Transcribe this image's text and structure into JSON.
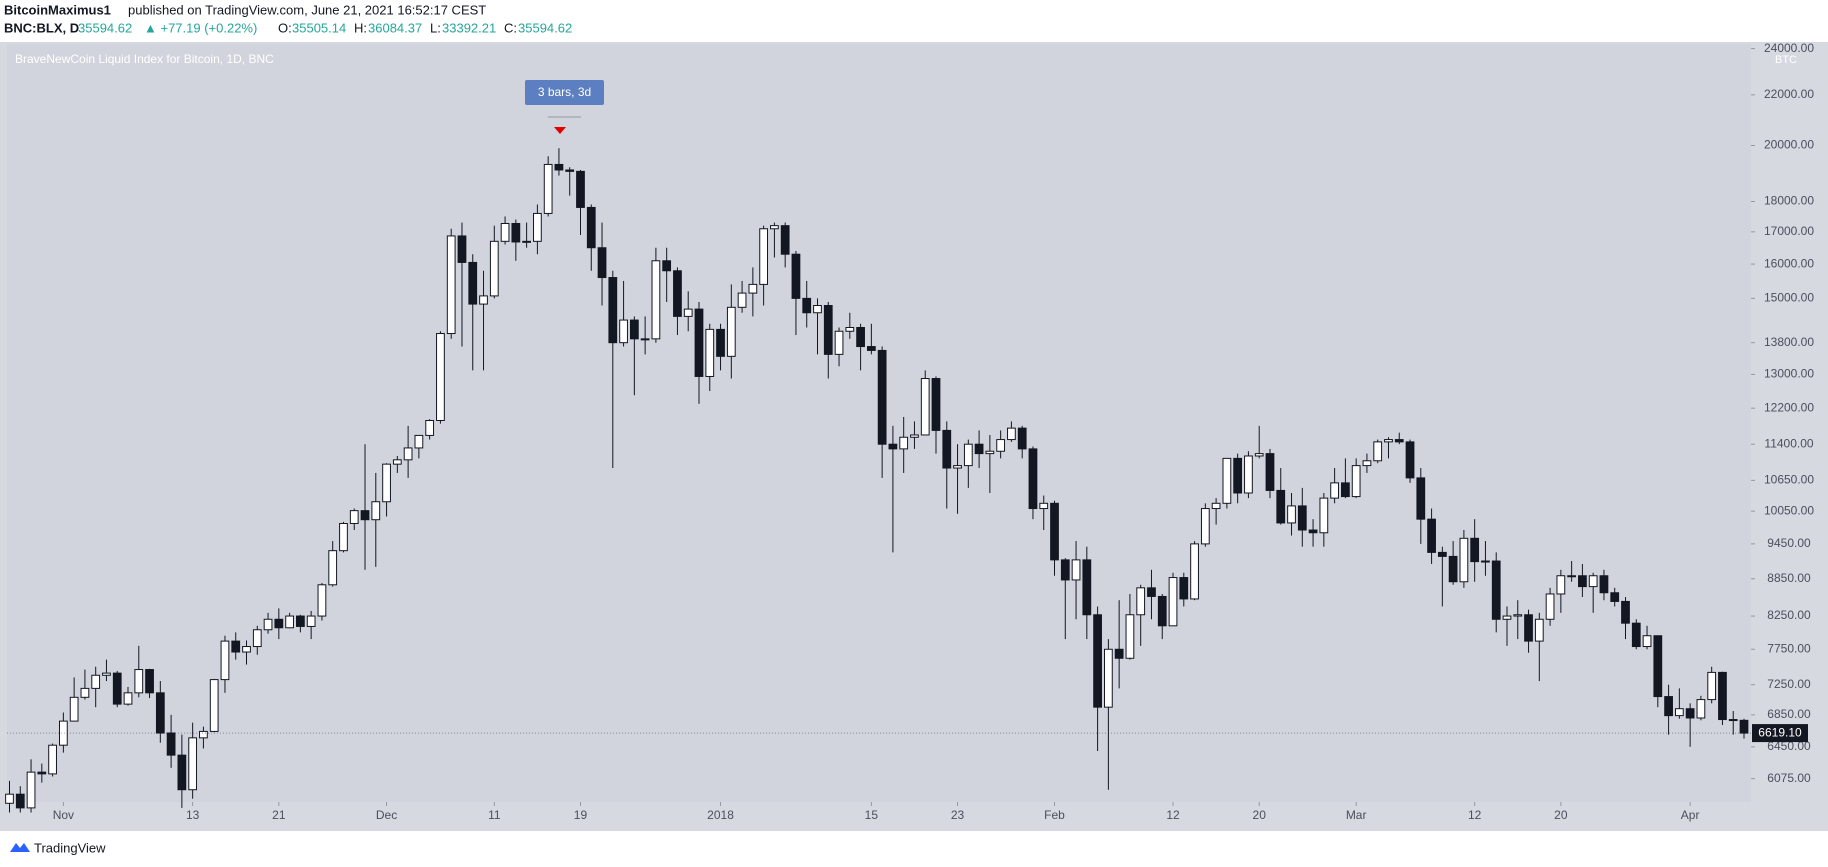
{
  "header": {
    "publisher": "BitcoinMaximus1",
    "published": "published on TradingView.com, June 21, 2021 16:52:17 CEST",
    "symbol": "BNC:BLX, D",
    "price": "35594.62",
    "change": "▲ +77.19 (+0.22%)",
    "o_label": "O:",
    "o": "35505.14",
    "h_label": "H:",
    "h": "36084.37",
    "l_label": "L:",
    "l": "33392.21",
    "c_label": "C:",
    "c": "35594.62"
  },
  "footer": {
    "brand": "TradingView"
  },
  "chart_data": {
    "type": "candlestick",
    "title": "BraveNewCoin Liquid Index for Bitcoin, 1D, BNC",
    "y_unit": "BTC",
    "annotation": "3 bars, 3d",
    "log_scale": true,
    "grid": false,
    "up_color": "#ffffff",
    "down_color": "#131722",
    "background": "#d1d4dc",
    "last_price": {
      "value": 6619.1,
      "label": "6619.10"
    },
    "categories": [
      null,
      null,
      null,
      null,
      null,
      "Nov",
      null,
      null,
      null,
      null,
      null,
      null,
      null,
      null,
      null,
      null,
      null,
      "13",
      null,
      null,
      null,
      null,
      null,
      null,
      null,
      "21",
      null,
      null,
      null,
      null,
      null,
      null,
      null,
      null,
      null,
      "Dec",
      null,
      null,
      null,
      null,
      null,
      null,
      null,
      null,
      null,
      "11",
      null,
      null,
      null,
      null,
      null,
      null,
      null,
      "19",
      null,
      null,
      null,
      null,
      null,
      null,
      null,
      null,
      null,
      null,
      null,
      null,
      "2018",
      null,
      null,
      null,
      null,
      null,
      null,
      null,
      null,
      null,
      null,
      null,
      null,
      null,
      "15",
      null,
      null,
      null,
      null,
      null,
      null,
      null,
      "23",
      null,
      null,
      null,
      null,
      null,
      null,
      null,
      null,
      "Feb",
      null,
      null,
      null,
      null,
      null,
      null,
      null,
      null,
      null,
      null,
      "12",
      null,
      null,
      null,
      null,
      null,
      null,
      null,
      "20",
      null,
      null,
      null,
      null,
      null,
      null,
      null,
      null,
      "Mar",
      null,
      null,
      null,
      null,
      null,
      null,
      null,
      null,
      null,
      null,
      "12",
      null,
      null,
      null,
      null,
      null,
      null,
      null,
      "20",
      null,
      null,
      null,
      null,
      null,
      null,
      null,
      null,
      null,
      null,
      null,
      "Apr",
      null,
      null,
      null,
      null,
      null
    ],
    "open": [
      5800,
      5900,
      5750,
      6150,
      6130,
      6470,
      6770,
      7080,
      7200,
      7380,
      7410,
      6990,
      7140,
      7460,
      7140,
      6620,
      6350,
      5950,
      6560,
      6640,
      7320,
      7870,
      7710,
      7790,
      8040,
      8200,
      8070,
      8250,
      8090,
      8250,
      8750,
      9330,
      9820,
      10060,
      9890,
      10230,
      10980,
      11070,
      11320,
      11590,
      11920,
      14040,
      16870,
      16050,
      14840,
      15070,
      16700,
      17270,
      16680,
      16700,
      17600,
      19300,
      19100,
      19050,
      17800,
      16500,
      15600,
      13800,
      14400,
      13900,
      13900,
      16100,
      15800,
      14500,
      14700,
      12950,
      14150,
      13450,
      14750,
      15150,
      15400,
      17100,
      17200,
      16300,
      15000,
      14600,
      14800,
      13500,
      14100,
      14200,
      13700,
      13600,
      11400,
      11300,
      11550,
      11600,
      12900,
      11700,
      10900,
      10950,
      11400,
      11200,
      11250,
      11500,
      11750,
      11300,
      10100,
      10200,
      9170,
      8830,
      9170,
      8270,
      6950,
      7750,
      7620,
      8270,
      8700,
      8560,
      8100,
      8870,
      8520,
      9450,
      10100,
      10200,
      11100,
      10400,
      11150,
      11200,
      10450,
      9830,
      10150,
      9700,
      9650,
      10300,
      10600,
      10330,
      10950,
      11050,
      11450,
      11500,
      11450,
      10700,
      9900,
      9300,
      9230,
      8800,
      9550,
      9140,
      9150,
      8200,
      8250,
      8270,
      7870,
      8200,
      8600,
      8900,
      8900,
      8720,
      8900,
      8620,
      8480,
      8140,
      7790,
      7950,
      7090,
      6840,
      6930,
      6810,
      7050,
      7420,
      6790,
      6780
    ],
    "high": [
      6050,
      5990,
      6300,
      6250,
      6490,
      6880,
      7350,
      7460,
      7500,
      7600,
      7440,
      7220,
      7800,
      7470,
      7300,
      6850,
      6600,
      6750,
      6700,
      7330,
      7950,
      8000,
      7880,
      8100,
      8300,
      8370,
      8300,
      8270,
      8330,
      8780,
      9500,
      9850,
      10100,
      11400,
      10800,
      11000,
      11150,
      11800,
      11600,
      11950,
      14100,
      17100,
      17300,
      16300,
      15800,
      17200,
      17500,
      17400,
      17300,
      17900,
      19600,
      19900,
      19200,
      19100,
      17900,
      17300,
      15800,
      15500,
      14500,
      14500,
      16500,
      16500,
      15900,
      15200,
      14900,
      14300,
      14300,
      15400,
      15500,
      15900,
      17200,
      17300,
      17300,
      16400,
      15500,
      15000,
      14900,
      14200,
      14600,
      14300,
      14300,
      13700,
      11800,
      12000,
      11900,
      13100,
      12950,
      11900,
      11400,
      11500,
      11700,
      11600,
      11700,
      11900,
      11800,
      11350,
      10350,
      10250,
      9200,
      9500,
      9400,
      8400,
      7900,
      8500,
      8600,
      8750,
      9000,
      8600,
      8950,
      8950,
      9500,
      10200,
      10300,
      11100,
      11200,
      11250,
      11800,
      11300,
      10900,
      10400,
      10500,
      9900,
      10400,
      10900,
      11100,
      11100,
      11200,
      11500,
      11550,
      11650,
      11500,
      10900,
      10100,
      9400,
      9500,
      9700,
      9900,
      9500,
      9300,
      8400,
      8500,
      8350,
      8300,
      8700,
      9000,
      9150,
      9100,
      8950,
      9000,
      8700,
      8550,
      8200,
      8100,
      7950,
      7250,
      7200,
      7000,
      7100,
      7500,
      7430,
      6900,
      6800
    ],
    "low": [
      5700,
      5700,
      5700,
      6030,
      6100,
      6380,
      6770,
      7050,
      6950,
      7300,
      6950,
      6970,
      7080,
      7070,
      6500,
      6200,
      5750,
      5850,
      6430,
      6630,
      7140,
      7600,
      7530,
      7670,
      7980,
      7900,
      8060,
      8000,
      7900,
      8180,
      8720,
      9300,
      9700,
      9000,
      9050,
      9950,
      10800,
      10700,
      11100,
      11500,
      11850,
      13900,
      13700,
      13100,
      13100,
      15000,
      16600,
      16100,
      16500,
      16300,
      17500,
      18900,
      18200,
      16900,
      15800,
      14800,
      10900,
      13700,
      12500,
      13500,
      13800,
      14900,
      14000,
      14100,
      12300,
      12600,
      13100,
      12900,
      14600,
      14500,
      14800,
      16200,
      15900,
      14000,
      14200,
      13500,
      12900,
      13200,
      13900,
      13100,
      13500,
      10700,
      9300,
      10800,
      11300,
      11600,
      11200,
      10100,
      10000,
      10500,
      10900,
      10400,
      11100,
      11450,
      11100,
      9900,
      9700,
      8900,
      7900,
      8200,
      7900,
      6400,
      5950,
      7200,
      7600,
      7800,
      8200,
      7900,
      8100,
      8400,
      8500,
      9400,
      9800,
      10100,
      10200,
      10300,
      11100,
      10300,
      9800,
      9600,
      9400,
      9400,
      9400,
      10200,
      10300,
      10300,
      10800,
      11000,
      11100,
      11400,
      10600,
      9450,
      9100,
      8400,
      8750,
      8700,
      8800,
      8900,
      8000,
      7800,
      7900,
      7700,
      7300,
      8100,
      8300,
      8800,
      8550,
      8300,
      8500,
      8400,
      7900,
      7750,
      7750,
      6950,
      6600,
      6800,
      6450,
      6780,
      7000,
      6720,
      6600,
      6550
    ],
    "close": [
      5900,
      5750,
      6150,
      6130,
      6470,
      6770,
      7080,
      7200,
      7380,
      7410,
      6990,
      7140,
      7460,
      7140,
      6620,
      6350,
      5950,
      6560,
      6640,
      7320,
      7870,
      7710,
      7790,
      8040,
      8200,
      8070,
      8250,
      8090,
      8250,
      8750,
      9330,
      9820,
      10060,
      9890,
      10230,
      10980,
      11070,
      11320,
      11590,
      11920,
      14040,
      16870,
      16050,
      14840,
      15070,
      16700,
      17270,
      16680,
      16700,
      17600,
      19300,
      19100,
      19050,
      17800,
      16500,
      15600,
      13800,
      14400,
      13900,
      13900,
      16100,
      15800,
      14500,
      14700,
      12950,
      14150,
      13450,
      14750,
      15150,
      15400,
      17100,
      17200,
      16300,
      15000,
      14600,
      14800,
      13500,
      14100,
      14200,
      13700,
      13600,
      11400,
      11300,
      11550,
      11600,
      12900,
      11700,
      10900,
      10950,
      11400,
      11200,
      11250,
      11500,
      11750,
      11300,
      10100,
      10200,
      9170,
      8830,
      9170,
      8270,
      6950,
      7750,
      7620,
      8270,
      8700,
      8560,
      8100,
      8870,
      8520,
      9450,
      10100,
      10200,
      11100,
      10400,
      11150,
      11200,
      10450,
      9830,
      10150,
      9700,
      9650,
      10300,
      10600,
      10330,
      10950,
      11050,
      11450,
      11500,
      11450,
      10700,
      9900,
      9300,
      9230,
      8800,
      9550,
      9140,
      9150,
      8200,
      8250,
      8270,
      7870,
      8200,
      8600,
      8900,
      8900,
      8720,
      8900,
      8620,
      8480,
      8140,
      7790,
      7950,
      7090,
      6840,
      6930,
      6810,
      7050,
      7420,
      6790,
      6780,
      6619.1
    ],
    "ylim": [
      5814,
      24210
    ],
    "yticks": [
      {
        "value": 6075,
        "label": "6075.00"
      },
      {
        "value": 6450,
        "label": "6450.00"
      },
      {
        "value": 6850,
        "label": "6850.00"
      },
      {
        "value": 7250,
        "label": "7250.00"
      },
      {
        "value": 7750,
        "label": "7750.00"
      },
      {
        "value": 8250,
        "label": "8250.00"
      },
      {
        "value": 8850,
        "label": "8850.00"
      },
      {
        "value": 9450,
        "label": "9450.00"
      },
      {
        "value": 10050,
        "label": "10050.00"
      },
      {
        "value": 10650,
        "label": "10650.00"
      },
      {
        "value": 11400,
        "label": "11400.00"
      },
      {
        "value": 12200,
        "label": "12200.00"
      },
      {
        "value": 13000,
        "label": "13000.00"
      },
      {
        "value": 13800,
        "label": "13800.00"
      },
      {
        "value": 15000,
        "label": "15000.00"
      },
      {
        "value": 16000,
        "label": "16000.00"
      },
      {
        "value": 17000,
        "label": "17000.00"
      },
      {
        "value": 18000,
        "label": "18000.00"
      },
      {
        "value": 20000,
        "label": "20000.00"
      },
      {
        "value": 22000,
        "label": "22000.00"
      },
      {
        "value": 24000,
        "label": "24000.00"
      }
    ]
  }
}
